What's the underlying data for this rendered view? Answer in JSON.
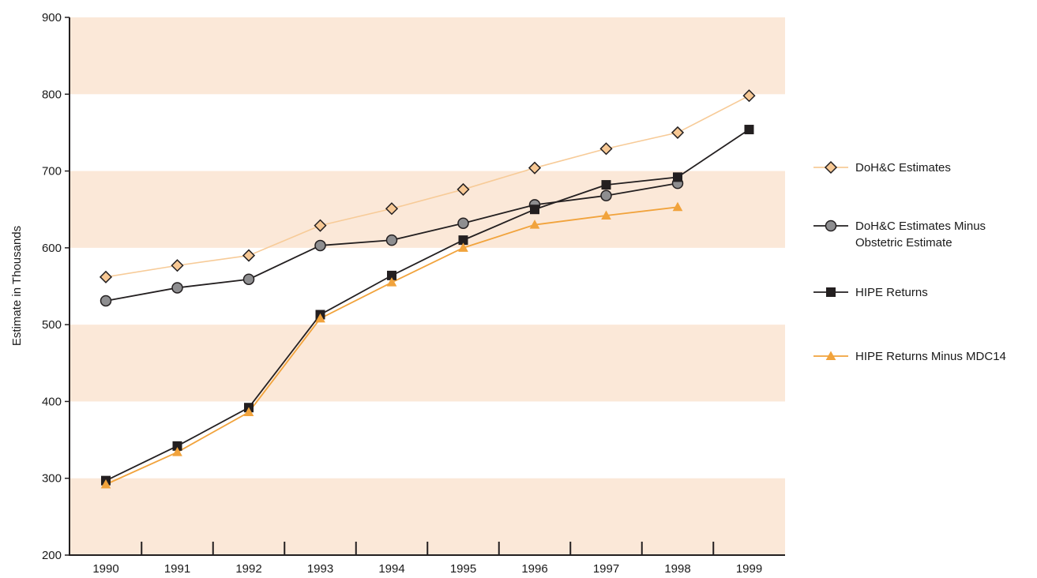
{
  "chart_data": {
    "type": "line",
    "title": "",
    "xlabel": "",
    "ylabel": "Estimate in Thousands",
    "x": [
      "1990",
      "1991",
      "1992",
      "1993",
      "1994",
      "1995",
      "1996",
      "1997",
      "1998",
      "1999"
    ],
    "ylim": [
      200,
      900
    ],
    "yticks": [
      200,
      300,
      400,
      500,
      600,
      700,
      800,
      900
    ],
    "grid": "alternating shaded horizontal bands",
    "legend_position": "right",
    "band_color": "#fbe8d8",
    "series": [
      {
        "name": "DoH&C Estimates",
        "marker": "diamond",
        "line_color": "#f7cb98",
        "marker_fill": "#f7c894",
        "marker_stroke": "#231f20",
        "values": [
          562,
          577,
          590,
          629,
          651,
          676,
          704,
          729,
          750,
          798
        ]
      },
      {
        "name": "DoH&C Estimates Minus Obstetric Estimate",
        "legend_lines": [
          "DoH&C Estimates Minus",
          "Obstetric Estimate"
        ],
        "marker": "circle",
        "line_color": "#231f20",
        "marker_fill": "#8e8e90",
        "marker_stroke": "#231f20",
        "values": [
          531,
          548,
          559,
          603,
          610,
          632,
          656,
          668,
          684,
          null
        ]
      },
      {
        "name": "HIPE Returns",
        "marker": "square",
        "line_color": "#231f20",
        "marker_fill": "#231f20",
        "marker_stroke": "#231f20",
        "values": [
          297,
          342,
          392,
          513,
          564,
          610,
          650,
          682,
          692,
          754
        ]
      },
      {
        "name": "HIPE Returns Minus MDC14",
        "marker": "triangle",
        "line_color": "#f1a33c",
        "marker_fill": "#f1a33c",
        "marker_stroke": "#f1a33c",
        "values": [
          292,
          334,
          386,
          508,
          555,
          600,
          630,
          642,
          653,
          null
        ]
      }
    ]
  }
}
